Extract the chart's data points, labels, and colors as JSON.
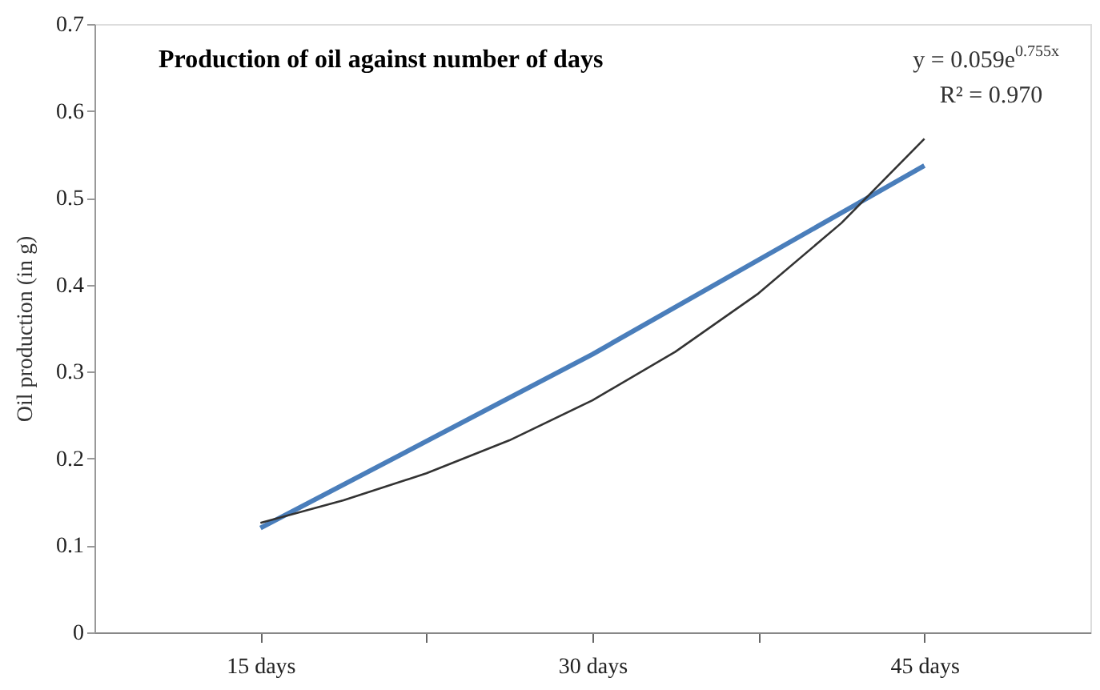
{
  "chart_data": {
    "type": "line",
    "title": "Production of oil against number of days",
    "ylabel": "Oil production (in g)",
    "xlim": [
      7.5,
      52.5
    ],
    "xticks": [
      {
        "value": 15,
        "label": "15 days"
      },
      {
        "value": 22.5,
        "label": null
      },
      {
        "value": 30,
        "label": "30 days"
      },
      {
        "value": 37.5,
        "label": null
      },
      {
        "value": 45,
        "label": "45 days"
      }
    ],
    "ylim": [
      0,
      0.7
    ],
    "yticks": [
      0,
      0.1,
      0.2,
      0.3,
      0.4,
      0.5,
      0.6,
      0.7
    ],
    "series": [
      {
        "color": "#4a7ebb",
        "x": [
          15,
          30,
          45
        ],
        "values": [
          0.12,
          0.32,
          0.537
        ]
      },
      {
        "type": "line",
        "color": "#333333",
        "x": [
          15,
          18.75,
          22.5,
          26.25,
          30,
          33.75,
          37.5,
          41.25,
          45
        ],
        "values": [
          0.126,
          0.152,
          0.183,
          0.221,
          0.267,
          0.323,
          0.39,
          0.471,
          0.568
        ]
      }
    ],
    "annotations": [
      "y = 0.059e$^{0.755x}$",
      "R² = 0.970"
    ],
    "grid": false,
    "marker": "none",
    "line_style": "solid"
  }
}
